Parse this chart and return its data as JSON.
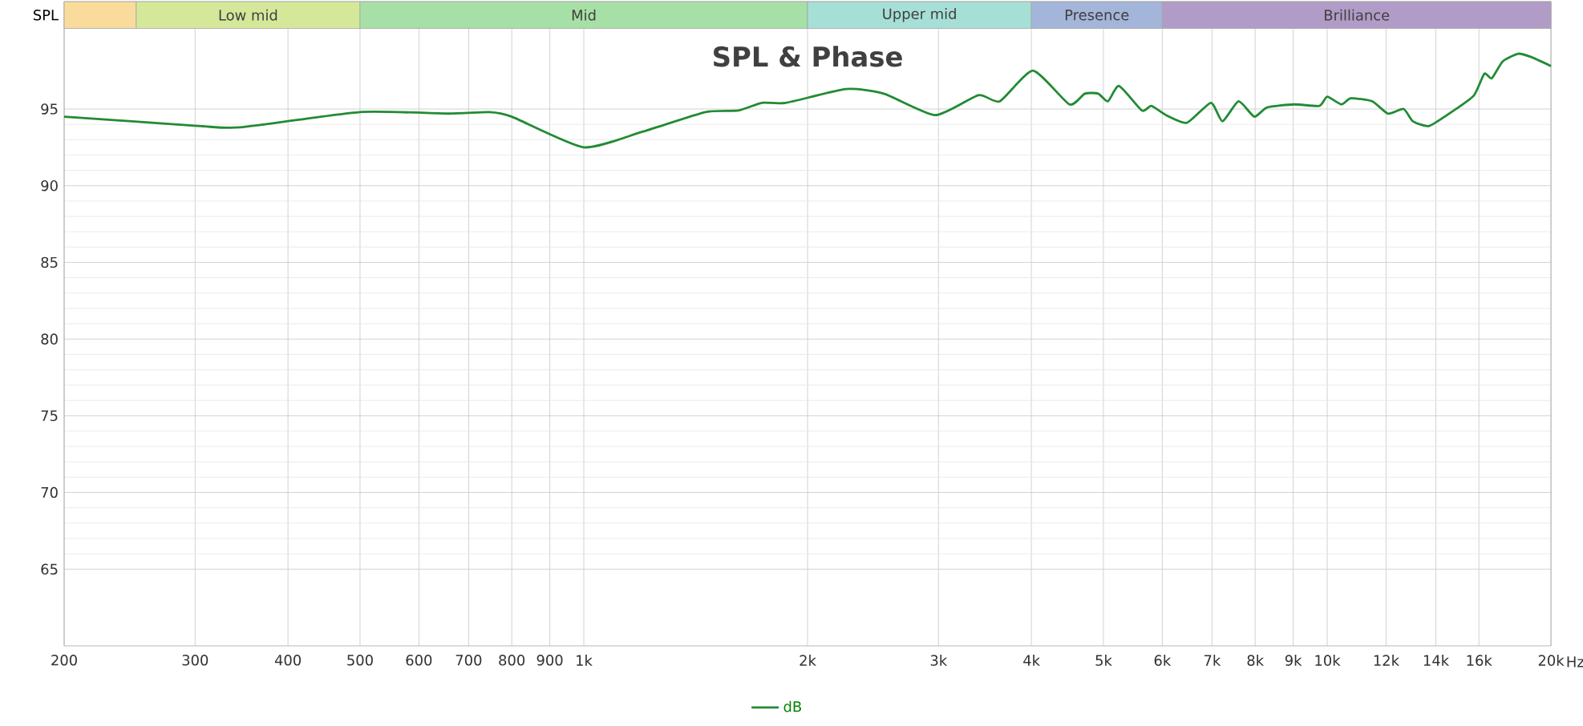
{
  "chart_data": {
    "type": "line",
    "title": "SPL & Phase",
    "ylabel": "SPL",
    "log": "x",
    "grid": true,
    "legend": "bottom",
    "marker": "none",
    "line_style": "solid",
    "xlim": [
      200,
      20000
    ],
    "ylim": [
      60,
      102
    ],
    "xticks": [
      200,
      300,
      400,
      500,
      600,
      700,
      800,
      900,
      {
        "value": 1000,
        "label": "1k"
      },
      {
        "value": 2000,
        "label": "2k"
      },
      {
        "value": 3000,
        "label": "3k"
      },
      {
        "value": 4000,
        "label": "4k"
      },
      {
        "value": 5000,
        "label": "5k"
      },
      {
        "value": 6000,
        "label": "6k"
      },
      {
        "value": 7000,
        "label": "7k"
      },
      {
        "value": 8000,
        "label": "8k"
      },
      {
        "value": 9000,
        "label": "9k"
      },
      {
        "value": 10000,
        "label": "10k"
      },
      {
        "value": 12000,
        "label": "12k"
      },
      {
        "value": 14000,
        "label": "14k"
      },
      {
        "value": 16000,
        "label": "16k"
      },
      {
        "value": 20000,
        "label": "20k"
      }
    ],
    "xlabel": "Hz",
    "yticks": [
      65,
      70,
      75,
      80,
      85,
      90,
      95
    ],
    "bands": [
      {
        "axis": "x",
        "from": 200,
        "to": 250,
        "label": null,
        "color": "#f9dc9c"
      },
      {
        "axis": "x",
        "from": 250,
        "to": 500,
        "label": "Low mid",
        "color": "#d5e89a"
      },
      {
        "axis": "x",
        "from": 500,
        "to": 2000,
        "label": "Mid",
        "color": "#a6e0a6"
      },
      {
        "axis": "x",
        "from": 2000,
        "to": 4000,
        "label": "Upper mid",
        "color": "#a6dfd6"
      },
      {
        "axis": "x",
        "from": 4000,
        "to": 6000,
        "label": "Presence",
        "color": "#a3b5d9"
      },
      {
        "axis": "x",
        "from": 6000,
        "to": 20000,
        "label": "Brilliance",
        "color": "#b09cc6"
      }
    ],
    "series": [
      {
        "name": "dB",
        "color": "#228b34",
        "x": [
          200,
          302,
          345,
          500,
          658,
          746,
          800,
          1000,
          1196,
          1458,
          1614,
          1736,
          1870,
          2252,
          2533,
          2970,
          3394,
          3627,
          4020,
          4500,
          4720,
          4920,
          5070,
          5250,
          5634,
          5800,
          6070,
          6475,
          6975,
          7230,
          7600,
          7980,
          8300,
          9030,
          9760,
          10000,
          10450,
          10760,
          11500,
          12070,
          12670,
          13040,
          13720,
          14800,
          15760,
          16270,
          16650,
          17220,
          18060,
          18780,
          20000
        ],
        "values": [
          94.5,
          93.9,
          93.8,
          94.8,
          94.7,
          94.8,
          94.5,
          92.5,
          93.5,
          94.8,
          94.9,
          95.4,
          95.4,
          96.3,
          96.0,
          94.6,
          95.9,
          95.5,
          97.5,
          95.3,
          96.0,
          96.0,
          95.5,
          96.5,
          94.9,
          95.2,
          94.6,
          94.1,
          95.4,
          94.2,
          95.5,
          94.5,
          95.1,
          95.3,
          95.2,
          95.8,
          95.3,
          95.7,
          95.5,
          94.7,
          95.0,
          94.2,
          93.9,
          94.9,
          95.9,
          97.3,
          97.0,
          98.1,
          98.6,
          98.4,
          97.8
        ]
      }
    ]
  }
}
